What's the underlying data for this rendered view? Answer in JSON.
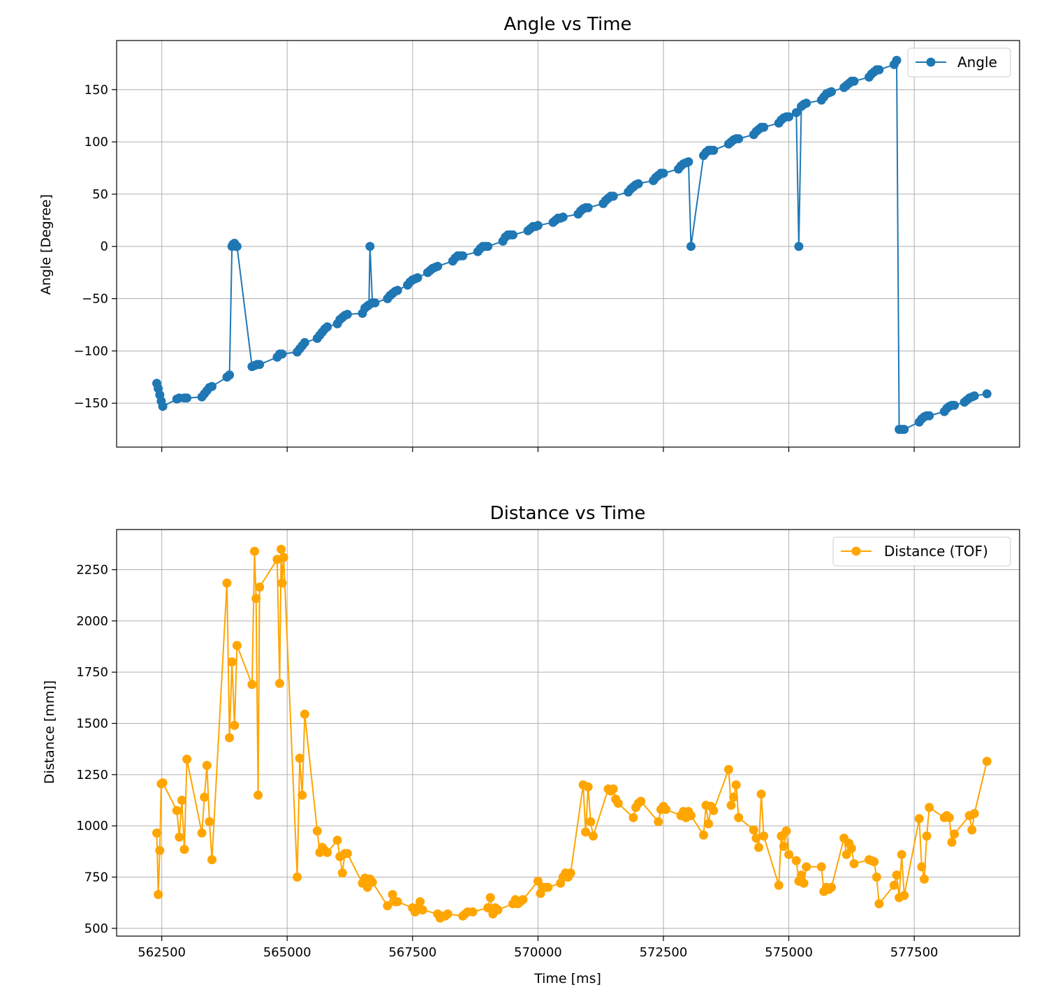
{
  "chart_data": [
    {
      "type": "line",
      "title": "Angle vs Time",
      "xlabel": "",
      "ylabel": "Angle [Degree]",
      "xlim": [
        561600,
        579600
      ],
      "ylim": [
        -192,
        197
      ],
      "xticks": [
        562500,
        565000,
        567500,
        570000,
        572500,
        575000,
        577500
      ],
      "xtick_labels_shown": false,
      "yticks": [
        -150,
        -100,
        -50,
        0,
        50,
        100,
        150
      ],
      "ytick_labels": [
        "−150",
        "−100",
        "−50",
        "0",
        "50",
        "100",
        "150"
      ],
      "grid": true,
      "legend_position": "top-right",
      "marker": "circle",
      "series": [
        {
          "name": "Angle",
          "color": "#1f77b4",
          "x": [
            562400,
            562430,
            562460,
            562490,
            562520,
            562800,
            562850,
            562950,
            563000,
            563300,
            563350,
            563400,
            563450,
            563500,
            563800,
            563850,
            563900,
            563920,
            563950,
            563980,
            564000,
            564300,
            564350,
            564400,
            564450,
            564800,
            564850,
            564900,
            565200,
            565250,
            565300,
            565350,
            565600,
            565650,
            565700,
            565750,
            565800,
            566000,
            566050,
            566100,
            566150,
            566200,
            566500,
            566550,
            566600,
            566630,
            566650,
            566700,
            566750,
            567000,
            567050,
            567100,
            567150,
            567200,
            567400,
            567450,
            567500,
            567550,
            567600,
            567800,
            567850,
            567900,
            567950,
            568000,
            568300,
            568350,
            568400,
            568450,
            568500,
            568800,
            568850,
            568900,
            568950,
            569000,
            569300,
            569350,
            569400,
            569450,
            569500,
            569800,
            569850,
            569900,
            569950,
            570000,
            570300,
            570350,
            570400,
            570450,
            570500,
            570800,
            570850,
            570900,
            570950,
            571000,
            571300,
            571350,
            571400,
            571450,
            571500,
            571800,
            571850,
            571900,
            571950,
            572000,
            572300,
            572350,
            572400,
            572450,
            572500,
            572800,
            572850,
            572900,
            572950,
            573000,
            573050,
            573300,
            573350,
            573400,
            573450,
            573500,
            573800,
            573850,
            573900,
            573950,
            574000,
            574300,
            574350,
            574400,
            574450,
            574500,
            574800,
            574850,
            574900,
            574950,
            575000,
            575150,
            575200,
            575250,
            575300,
            575350,
            575650,
            575700,
            575750,
            575800,
            575850,
            576100,
            576150,
            576200,
            576250,
            576300,
            576600,
            576650,
            576700,
            576750,
            576800,
            577100,
            577150,
            577200,
            577250,
            577300,
            577600,
            577650,
            577700,
            577750,
            577800,
            578100,
            578150,
            578200,
            578250,
            578300,
            578500,
            578550,
            578600,
            578650,
            578700,
            578950
          ],
          "y": [
            -131,
            -136,
            -142,
            -148,
            -153,
            -146,
            -145,
            -145,
            -145,
            -144,
            -141,
            -138,
            -135,
            -134,
            -125,
            -123,
            0,
            2,
            3,
            0,
            0,
            -115,
            -114,
            -113,
            -113,
            -106,
            -103,
            -103,
            -101,
            -98,
            -95,
            -92,
            -88,
            -85,
            -82,
            -79,
            -77,
            -74,
            -70,
            -68,
            -66,
            -65,
            -64,
            -59,
            -57,
            -56,
            0,
            -54,
            -54,
            -50,
            -47,
            -45,
            -43,
            -42,
            -37,
            -34,
            -32,
            -31,
            -30,
            -25,
            -23,
            -21,
            -20,
            -19,
            -14,
            -11,
            -9,
            -9,
            -9,
            -5,
            -2,
            0,
            0,
            0,
            5,
            9,
            11,
            11,
            11,
            15,
            17,
            19,
            19,
            20,
            23,
            25,
            27,
            27,
            28,
            31,
            34,
            36,
            37,
            37,
            41,
            44,
            46,
            48,
            48,
            52,
            55,
            57,
            59,
            60,
            63,
            66,
            68,
            70,
            70,
            74,
            77,
            79,
            80,
            81,
            0,
            87,
            90,
            92,
            92,
            92,
            98,
            100,
            102,
            103,
            103,
            107,
            110,
            112,
            114,
            114,
            118,
            121,
            123,
            124,
            124,
            128,
            0,
            134,
            136,
            137,
            140,
            143,
            146,
            147,
            148,
            152,
            154,
            156,
            158,
            158,
            162,
            165,
            167,
            169,
            169,
            174,
            178,
            -175,
            -175,
            -175,
            -168,
            -165,
            -163,
            -162,
            -162,
            -158,
            -155,
            -153,
            -152,
            -152,
            -149,
            -147,
            -145,
            -144,
            -143,
            -141
          ]
        }
      ]
    },
    {
      "type": "line",
      "title": "Distance vs Time",
      "xlabel": "Time [ms]",
      "ylabel": "Distance [mm]]",
      "xlim": [
        561600,
        579600
      ],
      "ylim": [
        462,
        2446
      ],
      "xticks": [
        562500,
        565000,
        567500,
        570000,
        572500,
        575000,
        577500
      ],
      "xtick_labels": [
        "562500",
        "565000",
        "567500",
        "570000",
        "572500",
        "575000",
        "577500"
      ],
      "yticks": [
        500,
        750,
        1000,
        1250,
        1500,
        1750,
        2000,
        2250
      ],
      "ytick_labels": [
        "500",
        "750",
        "1000",
        "1250",
        "1500",
        "1750",
        "2000",
        "2250"
      ],
      "grid": true,
      "legend_position": "top-right",
      "marker": "circle",
      "series": [
        {
          "name": "Distance (TOF)",
          "color": "#ffa500",
          "x": [
            562400,
            562430,
            562460,
            562490,
            562520,
            562800,
            562850,
            562900,
            562950,
            563000,
            563300,
            563350,
            563400,
            563450,
            563500,
            563800,
            563850,
            563900,
            563950,
            564000,
            564300,
            564350,
            564380,
            564420,
            564450,
            564800,
            564850,
            564880,
            564900,
            564930,
            565200,
            565250,
            565300,
            565350,
            565600,
            565650,
            565700,
            565750,
            565800,
            566000,
            566050,
            566100,
            566150,
            566200,
            566500,
            566550,
            566600,
            566650,
            566700,
            567000,
            567100,
            567150,
            567200,
            567500,
            567550,
            567600,
            567650,
            567700,
            568000,
            568050,
            568100,
            568150,
            568200,
            568500,
            568550,
            568600,
            568700,
            569000,
            569050,
            569100,
            569150,
            569200,
            569500,
            569550,
            569600,
            569650,
            569700,
            570000,
            570050,
            570100,
            570150,
            570200,
            570450,
            570500,
            570550,
            570600,
            570650,
            570900,
            570950,
            571000,
            571050,
            571100,
            571400,
            571450,
            571500,
            571550,
            571600,
            571900,
            571950,
            572000,
            572050,
            572400,
            572450,
            572500,
            572550,
            572850,
            572900,
            572950,
            573000,
            573050,
            573300,
            573350,
            573400,
            573450,
            573500,
            573800,
            573850,
            573900,
            573950,
            574000,
            574300,
            574350,
            574400,
            574450,
            574500,
            574800,
            574850,
            574900,
            574950,
            575000,
            575150,
            575200,
            575250,
            575300,
            575350,
            575650,
            575700,
            575750,
            575800,
            575850,
            576100,
            576150,
            576200,
            576250,
            576300,
            576600,
            576650,
            576700,
            576750,
            576800,
            577100,
            577150,
            577200,
            577250,
            577300,
            577600,
            577650,
            577700,
            577750,
            577800,
            578100,
            578150,
            578200,
            578250,
            578300,
            578600,
            578650,
            578700,
            578950
          ],
          "y": [
            965,
            665,
            880,
            1205,
            1210,
            1075,
            945,
            1125,
            885,
            1325,
            965,
            1140,
            1295,
            1020,
            835,
            2185,
            1430,
            1800,
            1490,
            1880,
            1690,
            2340,
            2110,
            1150,
            2165,
            2300,
            1695,
            2350,
            2185,
            2310,
            750,
            1330,
            1150,
            1545,
            975,
            870,
            895,
            880,
            870,
            930,
            850,
            770,
            865,
            865,
            720,
            745,
            700,
            740,
            725,
            610,
            665,
            630,
            630,
            600,
            580,
            600,
            630,
            590,
            570,
            550,
            560,
            560,
            570,
            560,
            570,
            580,
            580,
            600,
            650,
            570,
            600,
            590,
            620,
            640,
            620,
            630,
            640,
            730,
            670,
            700,
            700,
            700,
            720,
            750,
            770,
            750,
            770,
            1200,
            970,
            1190,
            1020,
            950,
            1180,
            1170,
            1180,
            1130,
            1110,
            1040,
            1090,
            1110,
            1120,
            1020,
            1080,
            1095,
            1080,
            1050,
            1070,
            1040,
            1070,
            1050,
            955,
            1100,
            1010,
            1095,
            1075,
            1275,
            1100,
            1140,
            1200,
            1040,
            980,
            940,
            895,
            1155,
            950,
            710,
            950,
            900,
            975,
            860,
            830,
            730,
            760,
            720,
            800,
            800,
            680,
            700,
            690,
            700,
            940,
            860,
            915,
            890,
            815,
            835,
            830,
            825,
            750,
            620,
            710,
            760,
            650,
            860,
            660,
            1035,
            800,
            740,
            950,
            1090,
            1040,
            1050,
            1040,
            920,
            960,
            1050,
            980,
            1060,
            1315
          ]
        }
      ]
    }
  ]
}
